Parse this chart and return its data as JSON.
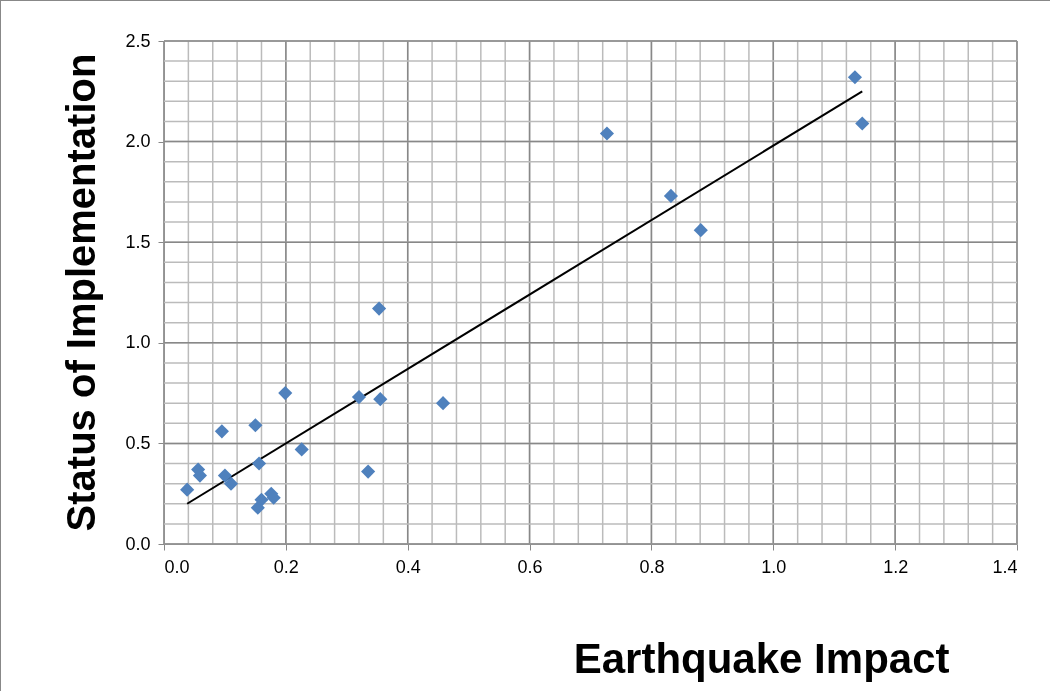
{
  "chart_data": {
    "type": "scatter",
    "xlabel": "Earthquake Impact",
    "ylabel": "Status of Implementation",
    "xlim": [
      0,
      1.4
    ],
    "ylim": [
      0,
      2.5
    ],
    "xticks": [
      {
        "value": 0,
        "label": "0.0"
      },
      0.2,
      0.4,
      0.6,
      0.8,
      {
        "value": 1,
        "label": "1.0"
      },
      1.2,
      1.4
    ],
    "yticks": [
      {
        "value": 0,
        "label": "0.0"
      },
      0.5,
      {
        "value": 1,
        "label": "1.0"
      },
      1.5,
      {
        "value": 2,
        "label": "2.0"
      },
      2.5
    ],
    "grid": true,
    "marker": "diamond",
    "series": [
      {
        "color": "#4f81bd",
        "x": [
          0.038,
          0.056,
          0.059,
          0.095,
          0.1,
          0.11,
          0.15,
          0.156,
          0.154,
          0.16,
          0.176,
          0.18,
          0.199,
          0.226,
          0.32,
          0.335,
          0.353,
          0.355,
          0.458,
          0.727,
          0.832,
          0.881,
          1.134,
          1.146
        ],
        "values": [
          0.27,
          0.37,
          0.34,
          0.56,
          0.34,
          0.3,
          0.59,
          0.4,
          0.18,
          0.22,
          0.25,
          0.23,
          0.75,
          0.47,
          0.73,
          0.36,
          1.17,
          0.72,
          0.7,
          2.04,
          1.73,
          1.56,
          2.32,
          2.09
        ]
      },
      {
        "type": "line",
        "color": "#000000",
        "marker": "none",
        "x": [
          0.038,
          1.146
        ],
        "values": [
          0.2,
          2.25
        ]
      }
    ]
  }
}
